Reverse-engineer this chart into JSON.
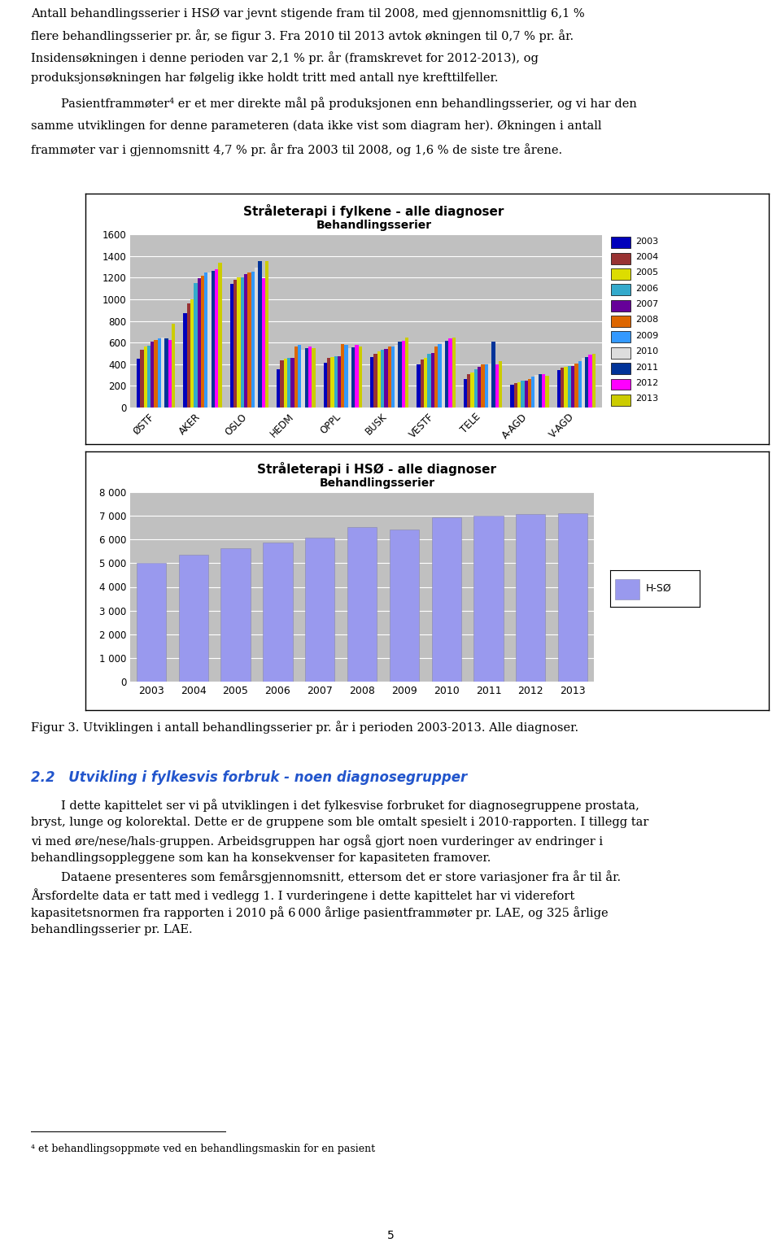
{
  "chart1": {
    "title1": "Stråleterapi i fylkene - alle diagnoser",
    "title2": "Behandlingsserier",
    "regions": [
      "ØSTF",
      "AKER",
      "OSLO",
      "HEDM",
      "OPPL",
      "BUSK",
      "VESTF",
      "TELE",
      "A-AGD",
      "V-AGD"
    ],
    "years": [
      2003,
      2004,
      2005,
      2006,
      2007,
      2008,
      2009,
      2010,
      2011,
      2012,
      2013
    ],
    "data": {
      "ØSTF": [
        450,
        535,
        560,
        570,
        610,
        620,
        635,
        645,
        640,
        620,
        770
      ],
      "AKER": [
        870,
        960,
        1000,
        1150,
        1195,
        1220,
        1245,
        1250,
        1265,
        1275,
        1340
      ],
      "OSLO": [
        1140,
        1180,
        1200,
        1205,
        1235,
        1245,
        1255,
        1295,
        1350,
        1195,
        1355
      ],
      "HEDM": [
        355,
        435,
        450,
        455,
        455,
        565,
        575,
        535,
        545,
        565,
        550
      ],
      "OPPL": [
        415,
        455,
        465,
        470,
        475,
        585,
        575,
        545,
        555,
        580,
        565
      ],
      "BUSK": [
        465,
        495,
        515,
        530,
        540,
        565,
        565,
        580,
        605,
        615,
        645
      ],
      "VESTF": [
        395,
        445,
        455,
        495,
        505,
        565,
        585,
        595,
        615,
        635,
        645
      ],
      "TELE": [
        260,
        305,
        325,
        355,
        375,
        395,
        395,
        405,
        605,
        395,
        425
      ],
      "A-AGD": [
        210,
        225,
        235,
        245,
        245,
        265,
        285,
        300,
        305,
        305,
        290
      ],
      "V-AGD": [
        345,
        365,
        375,
        385,
        385,
        405,
        425,
        455,
        465,
        485,
        495
      ]
    },
    "bar_colors_by_year": {
      "2003": "#0000bb",
      "2004": "#993333",
      "2005": "#dddd00",
      "2006": "#33aacc",
      "2007": "#660099",
      "2008": "#dd6600",
      "2009": "#3399ff",
      "2010": "#dddddd",
      "2011": "#003399",
      "2012": "#ff00ff",
      "2013": "#cccc00"
    },
    "ylim": [
      0,
      1600
    ],
    "yticks": [
      0,
      200,
      400,
      600,
      800,
      1000,
      1200,
      1400,
      1600
    ],
    "bg_color": "#c0c0c0"
  },
  "chart2": {
    "title1": "Stråleterapi i HSØ - alle diagnoser",
    "title2": "Behandlingsserier",
    "years": [
      2003,
      2004,
      2005,
      2006,
      2007,
      2008,
      2009,
      2010,
      2011,
      2012,
      2013
    ],
    "values": [
      5020,
      5340,
      5620,
      5870,
      6080,
      6530,
      6430,
      6940,
      7000,
      7060,
      7120
    ],
    "bar_color": "#9999ee",
    "legend_label": "H-SØ",
    "ylim": [
      0,
      8000
    ],
    "yticks": [
      0,
      1000,
      2000,
      3000,
      4000,
      5000,
      6000,
      7000,
      8000
    ],
    "bg_color": "#c0c0c0"
  },
  "text_lines_para1": [
    "Antall behandlingsserier i HSØ var jevnt stigende fram til 2008, med gjennomsnittlig 6,1 %",
    "flere behandlingsserier pr. år, se figur 3. Fra 2010 til 2013 avtok økningen til 0,7 % pr. år.",
    "Insidensøkningen i denne perioden var 2,1 % pr. år (framskrevet for 2012-2013), og",
    "produksjonsøkningen har følgelig ikke holdt tritt med antall nye krefttilfeller."
  ],
  "text_lines_para2": [
    "        Pasientframmøter⁴ er et mer direkte mål på produksjonen enn behandlingsserier, og vi har den",
    "samme utviklingen for denne parameteren (data ikke vist som diagram her). Økningen i antall",
    "frammøter var i gjennomsnitt 4,7 % pr. år fra 2003 til 2008, og 1,6 % de siste tre årene."
  ],
  "figure_caption": "Figur 3. Utviklingen i antall behandlingsserier pr. år i perioden 2003-2013. Alle diagnoser.",
  "section_title": "2.2 Utvikling i fylkesvis forbruk - noen diagnosegrupper",
  "body_lines": [
    "        I dette kapittelet ser vi på utviklingen i det fylkesvise forbruket for diagnosegruppene prostata,",
    "bryst, lunge og kolorektal. Dette er de gruppene som ble omtalt spesielt i 2010-rapporten. I tillegg tar",
    "vi med øre/nese/hals-gruppen. Arbeidsgruppen har også gjort noen vurderinger av endringer i",
    "behandlingsoppleggene som kan ha konsekvenser for kapasiteten framover.",
    "        Dataene presenteres som femårsgjennomsnitt, ettersom det er store variasjoner fra år til år.",
    "Årsfordelte data er tatt med i vedlegg 1. I vurderingene i dette kapittelet har vi viderefort",
    "kapasitetsnormen fra rapporten i 2010 på 6 000 årlige pasientframmøter pr. LAE, og 325 årlige",
    "behandlingsserier pr. LAE."
  ],
  "footnote_text": "⁴ et behandlingsoppmøte ved en behandlingsmaskin for en pasient",
  "page_number": "5",
  "bg_color": "#ffffff"
}
